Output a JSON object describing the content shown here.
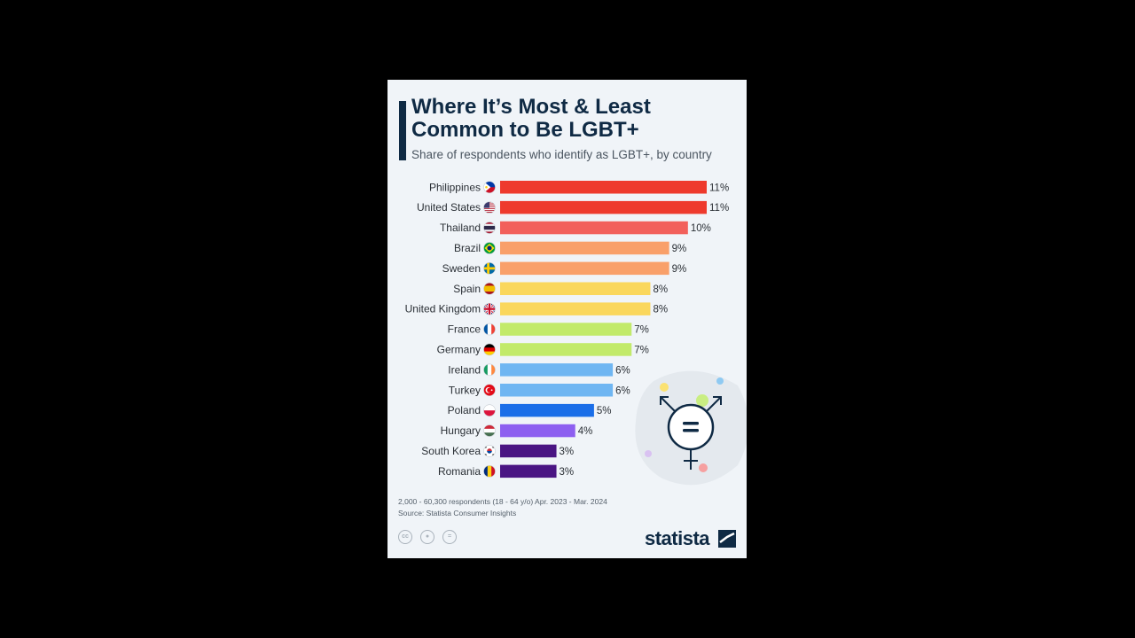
{
  "title": "Where It’s Most & Least Common to Be LGBT+",
  "subtitle": "Share of respondents who identify as LGBT+, by country",
  "footnote": {
    "respondents": "2,000 - 60,300 respondents (18 - 64 y/o) Apr. 2023 - Mar. 2024",
    "source": "Source: Statista Consumer Insights"
  },
  "brand": {
    "name": "statista"
  },
  "license_icons": [
    "cc-icon",
    "attribution-icon",
    "no-derivatives-icon"
  ],
  "colors": {
    "title": "#0f2a44",
    "bar_11": "#ee3a2d",
    "bar_10": "#f2605b",
    "bar_9": "#f9a06a",
    "bar_8": "#fad75d",
    "bar_7": "#c2ea6a",
    "bar_6": "#6fb6f2",
    "bar_5": "#1a6ee8",
    "bar_4": "#8d5ff0",
    "bar_3": "#4a1583"
  },
  "chart_data": {
    "type": "bar",
    "orientation": "horizontal",
    "title": "Where It’s Most & Least Common to Be LGBT+",
    "subtitle": "Share of respondents who identify as LGBT+, by country",
    "unit": "%",
    "categories": [
      "Philippines",
      "United States",
      "Thailand",
      "Brazil",
      "Sweden",
      "Spain",
      "United Kingdom",
      "France",
      "Germany",
      "Ireland",
      "Turkey",
      "Poland",
      "Hungary",
      "South Korea",
      "Romania"
    ],
    "values": [
      11,
      11,
      10,
      9,
      9,
      8,
      8,
      7,
      7,
      6,
      6,
      5,
      4,
      3,
      3
    ],
    "value_labels": [
      "11%",
      "11%",
      "10%",
      "9%",
      "9%",
      "8%",
      "8%",
      "7%",
      "7%",
      "6%",
      "6%",
      "5%",
      "4%",
      "3%",
      "3%"
    ],
    "flags": [
      "philippines-flag-icon",
      "united-states-flag-icon",
      "thailand-flag-icon",
      "brazil-flag-icon",
      "sweden-flag-icon",
      "spain-flag-icon",
      "united-kingdom-flag-icon",
      "france-flag-icon",
      "germany-flag-icon",
      "ireland-flag-icon",
      "turkey-flag-icon",
      "poland-flag-icon",
      "hungary-flag-icon",
      "south-korea-flag-icon",
      "romania-flag-icon"
    ],
    "xlim": [
      0,
      11
    ],
    "grid": false,
    "legend": "none"
  }
}
